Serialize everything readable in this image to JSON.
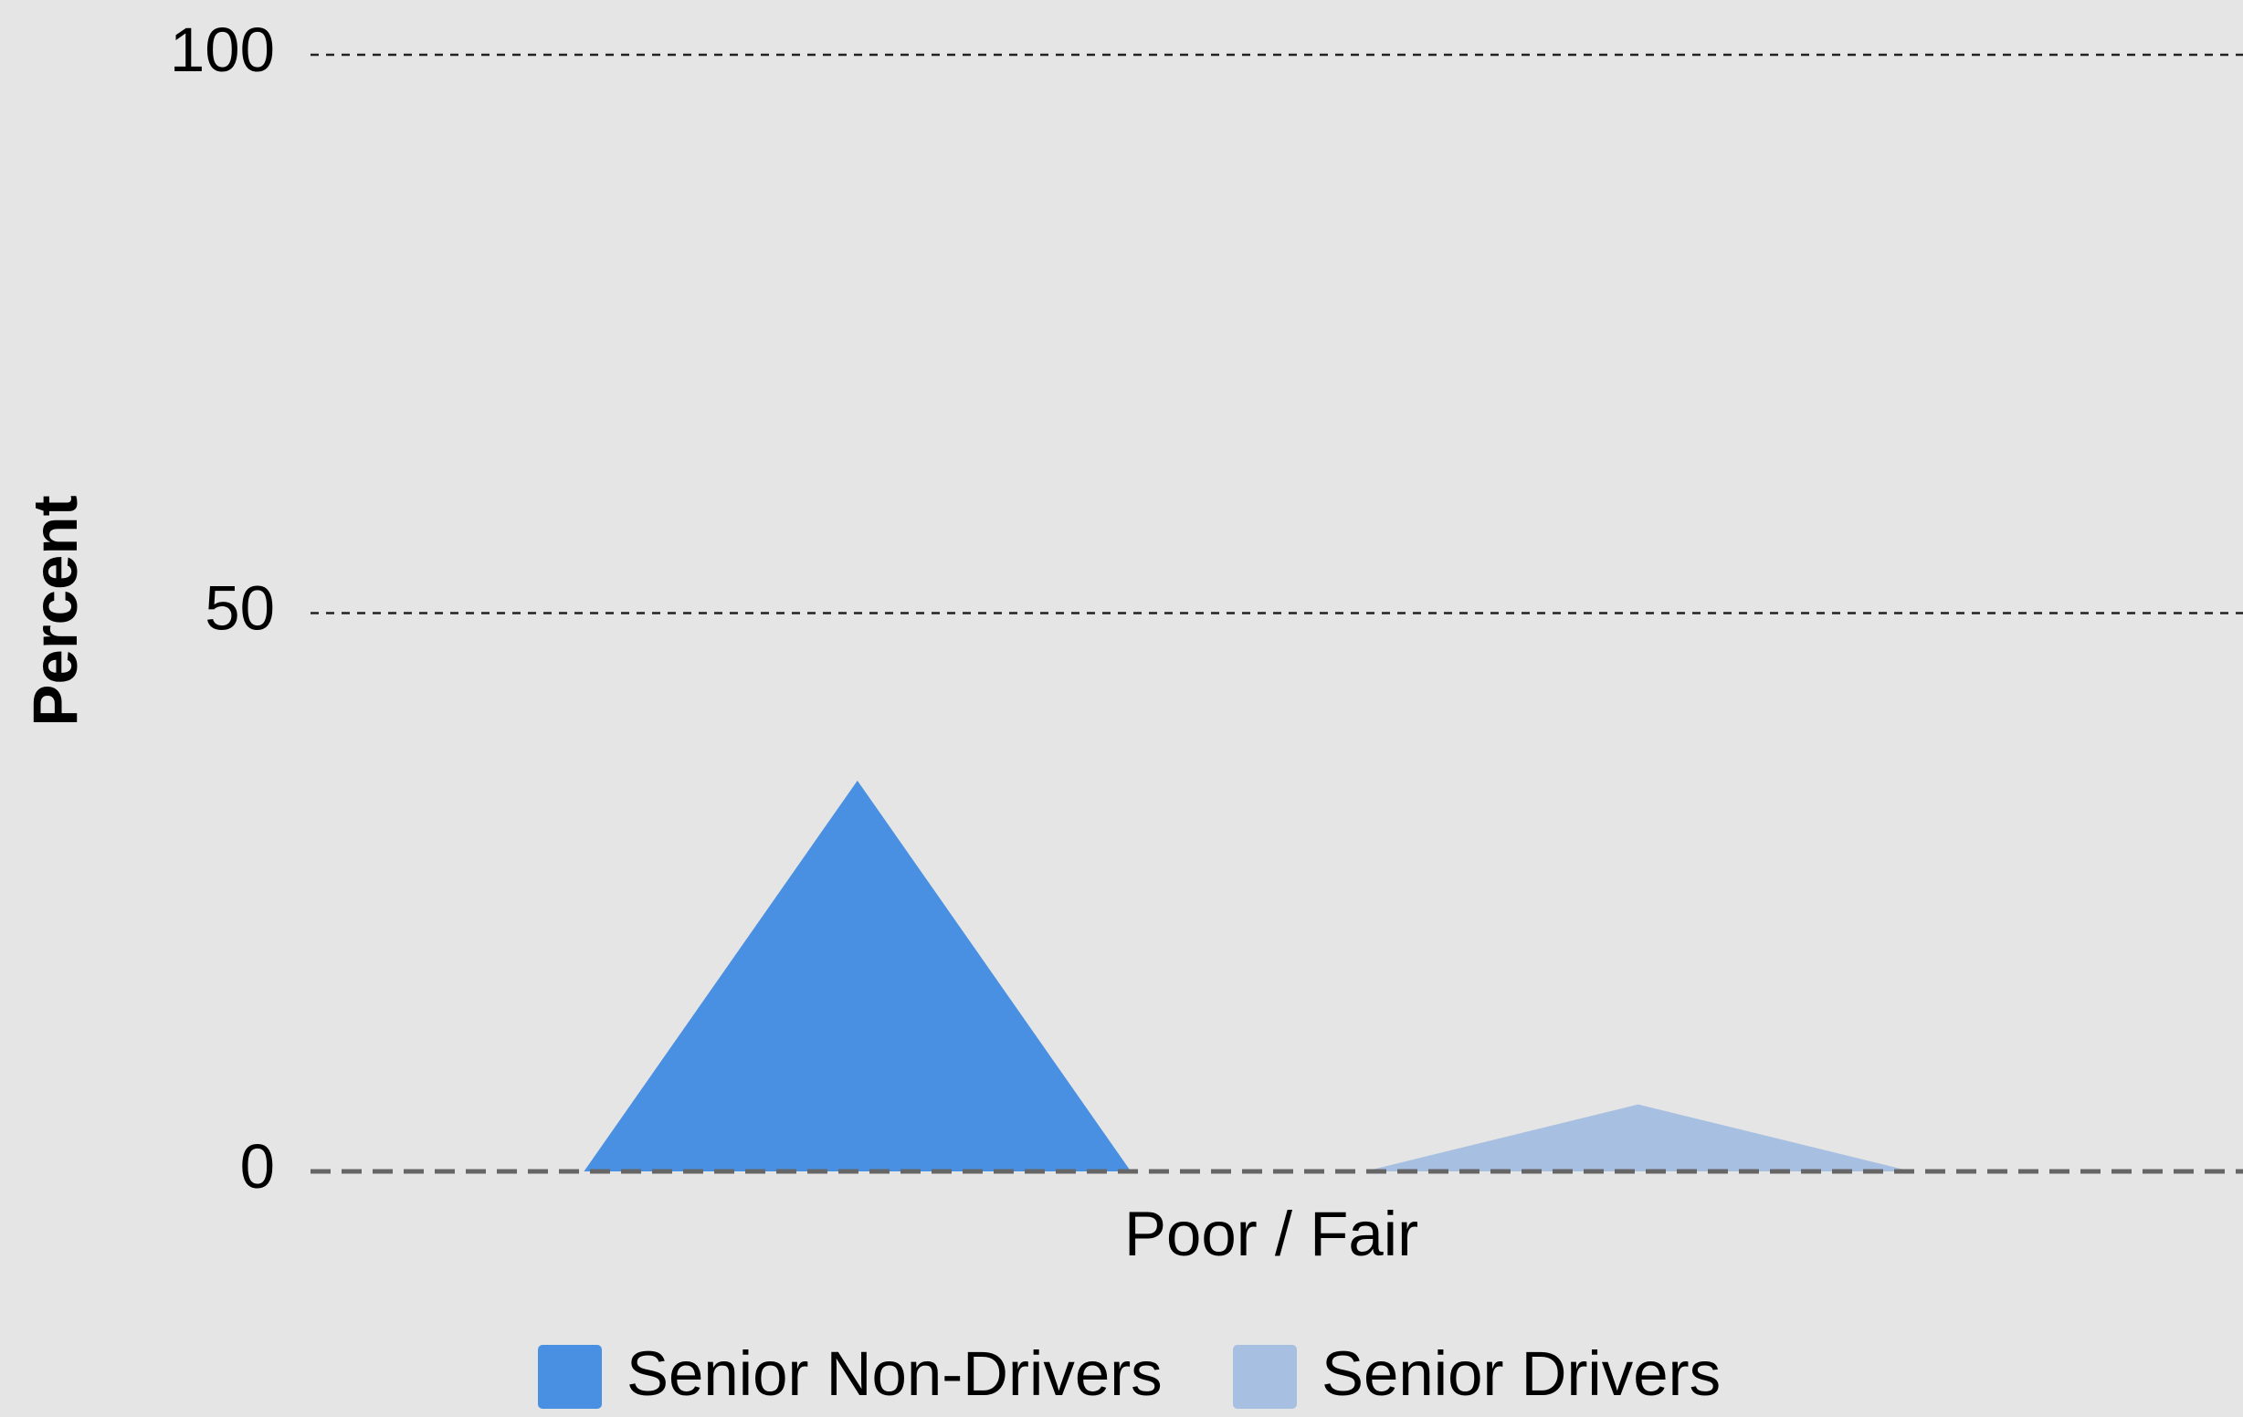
{
  "chart_data": {
    "type": "bar",
    "bar_shape": "triangle",
    "y_label": "Percent",
    "categories": [
      "Poor / Fair"
    ],
    "series": [
      {
        "name": "Senior Non-Drivers",
        "color": "#4a90e2",
        "values": [
          35
        ]
      },
      {
        "name": "Senior Drivers",
        "color": "#a7bfe0",
        "values": [
          6
        ]
      }
    ],
    "ylim": [
      0,
      100
    ],
    "yticks": [
      0,
      50,
      100
    ],
    "grid": true,
    "legend": "bottom"
  }
}
